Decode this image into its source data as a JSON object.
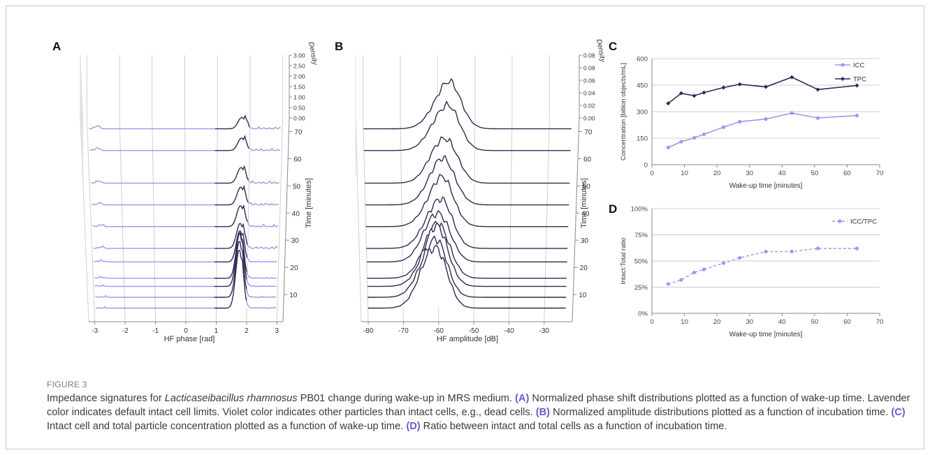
{
  "figure": {
    "label": "FIGURE 3",
    "caption": {
      "intro_1": "Impedance signatures for ",
      "species": "Lacticaseibacillus rhamnosus",
      "intro_2": " PB01 change during wake-up in MRS medium. ",
      "A_tag": "(A)",
      "A_text": " Normalized phase shift distributions plotted as a function of wake-up time. Lavender color indicates default intact cell limits. Violet color indicates other particles than intact cells, e.g., dead cells. ",
      "B_tag": "(B)",
      "B_text": " Normalized amplitude distributions plotted as a function of incubation time. ",
      "C_tag": "(C)",
      "C_text": " Intact cell and total particle concentration plotted as a function of wake-up time. ",
      "D_tag": "(D)",
      "D_text": " Ratio between intact and total cells as a function of incubation time."
    }
  },
  "colors": {
    "dark": "#2d2b52",
    "lavender": "#a792ee",
    "grid": "#cfcfcf",
    "axis": "#8a8a8a"
  },
  "chart_data": [
    {
      "panel": "A",
      "type": "line",
      "title": "",
      "xlabel": "HF phase [rad]",
      "xticks": [
        "-3",
        "-2",
        "-1",
        "0",
        "1",
        "2",
        "3"
      ],
      "xlim": [
        -3.2,
        3.2
      ],
      "zlabel": "Time [minutes]",
      "zticks": [
        "10",
        "20",
        "30",
        "40",
        "50",
        "60",
        "70"
      ],
      "zlim": [
        0,
        75
      ],
      "ylabel": "Density",
      "yticks": [
        "0.00",
        "0.50",
        "1.00",
        "1.50",
        "2.00",
        "2.50",
        "3.00"
      ],
      "ylim": [
        0,
        3.0
      ],
      "intact_range": [
        0.9,
        1.95
      ],
      "times": [
        5,
        9,
        13,
        16,
        22,
        27,
        35,
        43,
        51,
        63,
        71
      ],
      "peak_x": 1.75,
      "peak_heights": [
        2.8,
        2.7,
        2.55,
        2.2,
        1.5,
        1.2,
        1.0,
        0.85,
        0.75,
        0.6,
        0.55
      ]
    },
    {
      "panel": "B",
      "type": "line",
      "title": "",
      "xlabel": "HF amplitude [dB]",
      "xticks": [
        "-80",
        "-70",
        "-60",
        "-50",
        "-40",
        "-30"
      ],
      "xlim": [
        -82,
        -22
      ],
      "zlabel": "Time [minutes]",
      "zticks": [
        "10",
        "20",
        "30",
        "40",
        "50",
        "60",
        "70"
      ],
      "zlim": [
        0,
        75
      ],
      "ylabel": "Density",
      "yticks": [
        "0.00",
        "0.02",
        "0.04",
        "0.06",
        "0.08",
        "0.08"
      ],
      "ylim": [
        0,
        0.08
      ],
      "times": [
        5,
        9,
        13,
        16,
        22,
        27,
        35,
        43,
        51,
        63,
        71
      ],
      "peak_x": [
        -61,
        -61,
        -60.5,
        -60,
        -60,
        -59.5,
        -59,
        -58.5,
        -58,
        -57.5,
        -57
      ],
      "peak_heights": [
        0.075,
        0.07,
        0.07,
        0.065,
        0.06,
        0.06,
        0.058,
        0.055,
        0.055,
        0.055,
        0.055
      ]
    },
    {
      "panel": "C",
      "type": "line",
      "title": "",
      "xlabel": "Wake-up time [minutes]",
      "ylabel": "Concentration [billion objects/mL]",
      "xlim": [
        0,
        70
      ],
      "ylim": [
        0,
        600
      ],
      "xticks": [
        "0",
        "10",
        "20",
        "30",
        "40",
        "50",
        "60",
        "70"
      ],
      "yticks": [
        "0",
        "150",
        "300",
        "450",
        "600"
      ],
      "legend": "top-right",
      "grid": true,
      "series": [
        {
          "name": "ICC",
          "x": [
            5,
            9,
            13,
            16,
            22,
            27,
            35,
            43,
            51,
            63
          ],
          "values": [
            97,
            130,
            152,
            172,
            212,
            243,
            258,
            292,
            264,
            278
          ]
        },
        {
          "name": "TPC",
          "x": [
            5,
            9,
            13,
            16,
            22,
            27,
            35,
            43,
            51,
            63
          ],
          "values": [
            347,
            404,
            390,
            408,
            436,
            455,
            440,
            495,
            425,
            448
          ]
        }
      ]
    },
    {
      "panel": "D",
      "type": "line",
      "title": "",
      "xlabel": "Wake-up time [minutes]",
      "ylabel": "Intact:Total ratio",
      "xlim": [
        0,
        70
      ],
      "ylim": [
        0,
        100
      ],
      "xticks": [
        "0",
        "10",
        "20",
        "30",
        "40",
        "50",
        "60",
        "70"
      ],
      "yticks": [
        "0%",
        "25%",
        "50%",
        "75%",
        "100%"
      ],
      "legend": "top-right",
      "grid": true,
      "series": [
        {
          "name": "ICC/TPC",
          "x": [
            5,
            9,
            13,
            16,
            22,
            27,
            35,
            43,
            51,
            63
          ],
          "values": [
            28,
            32,
            39,
            42,
            48,
            53,
            59,
            59,
            62,
            62
          ]
        }
      ]
    }
  ]
}
